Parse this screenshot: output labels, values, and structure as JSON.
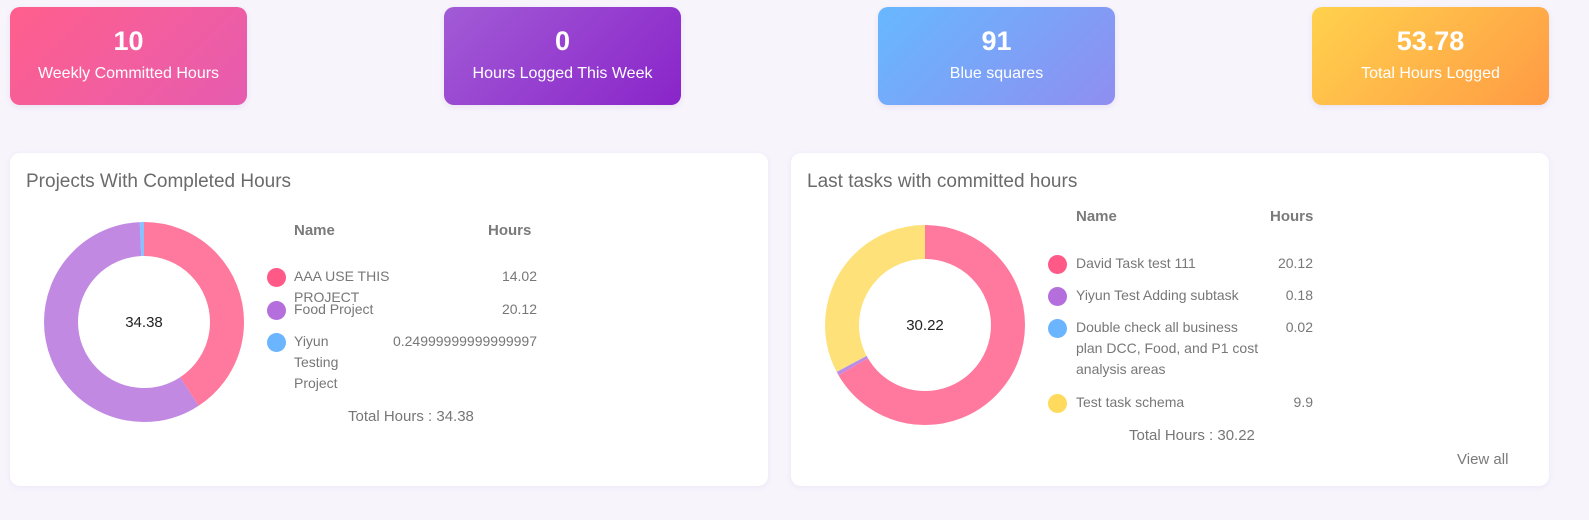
{
  "stats": [
    {
      "value": "10",
      "label": "Weekly Committed Hours"
    },
    {
      "value": "0",
      "label": "Hours Logged This Week"
    },
    {
      "value": "91",
      "label": "Blue squares"
    },
    {
      "value": "53.78",
      "label": "Total Hours Logged"
    }
  ],
  "projects": {
    "title": "Projects With Completed Hours",
    "col_name": "Name",
    "col_hours": "Hours",
    "center": "34.38",
    "total": "Total Hours : 34.38",
    "items": [
      {
        "name": "AAA USE THIS PROJECT",
        "hours": "14.02",
        "value": 14.02,
        "color": "#ff5a87"
      },
      {
        "name": "Food Project",
        "hours": "20.12",
        "value": 20.12,
        "color": "#b56fdc"
      },
      {
        "name": "Yiyun Testing Project",
        "hours": "0.24999999999999997",
        "value": 0.25,
        "color": "#6bb5ff"
      }
    ]
  },
  "tasks": {
    "title": "Last tasks with committed hours",
    "col_name": "Name",
    "col_hours": "Hours",
    "center": "30.22",
    "total": "Total Hours : 30.22",
    "view_all": "View all",
    "items": [
      {
        "name": "David Task test 111",
        "hours": "20.12",
        "value": 20.12,
        "color": "#ff5a87"
      },
      {
        "name": "Yiyun Test Adding subtask",
        "hours": "0.18",
        "value": 0.18,
        "color": "#b56fdc"
      },
      {
        "name": "Double check all business plan DCC, Food, and P1 cost analysis areas",
        "hours": "0.02",
        "value": 0.02,
        "color": "#6bb5ff"
      },
      {
        "name": "Test task schema",
        "hours": "9.9",
        "value": 9.9,
        "color": "#ffda5c"
      }
    ]
  }
}
